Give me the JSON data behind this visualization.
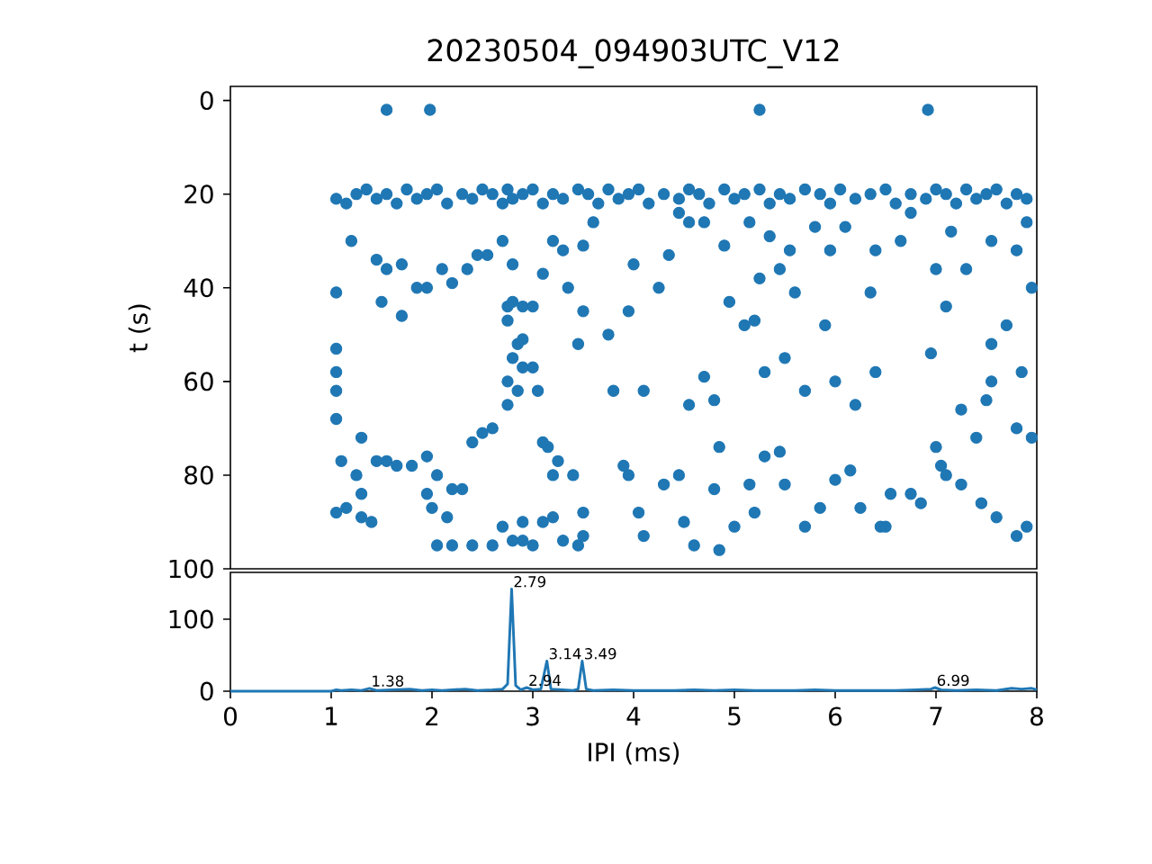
{
  "chart_data": [
    {
      "type": "scatter",
      "title": "20230504_094903UTC_V12",
      "ylabel": "t (s)",
      "color": "#1f77b4",
      "marker": "circle",
      "tick_labels": "y",
      "xlim": [
        0,
        8
      ],
      "ylim": [
        100,
        -3
      ],
      "yticks": [
        0,
        20,
        40,
        60,
        80,
        100
      ],
      "x": [
        1.55,
        1.98,
        5.25,
        6.92,
        1.05,
        1.15,
        1.25,
        1.35,
        1.45,
        1.55,
        1.65,
        1.75,
        1.85,
        1.95,
        2.05,
        2.15,
        2.3,
        2.4,
        2.5,
        2.6,
        2.7,
        2.75,
        2.8,
        2.9,
        3.0,
        3.1,
        3.2,
        3.3,
        3.45,
        3.55,
        3.65,
        3.75,
        3.85,
        3.95,
        4.05,
        4.15,
        4.3,
        4.45,
        4.55,
        4.65,
        4.75,
        4.9,
        5.0,
        5.1,
        5.25,
        5.35,
        5.45,
        5.55,
        5.7,
        5.85,
        5.95,
        6.05,
        6.2,
        6.35,
        6.5,
        6.6,
        6.75,
        6.9,
        7.0,
        7.1,
        7.2,
        7.3,
        7.4,
        7.5,
        7.6,
        7.7,
        7.8,
        7.9,
        1.05,
        1.05,
        1.05,
        1.05,
        1.05,
        1.1,
        1.05,
        1.15,
        1.3,
        1.4,
        1.25,
        1.3,
        1.3,
        1.45,
        1.55,
        1.65,
        1.8,
        1.95,
        2.0,
        2.05,
        1.95,
        2.15,
        2.2,
        2.3,
        2.4,
        2.5,
        2.6,
        2.75,
        2.75,
        2.8,
        2.85,
        2.75,
        2.75,
        2.8,
        2.9,
        3.0,
        2.9,
        2.9,
        2.85,
        3.0,
        3.05,
        3.1,
        3.15,
        3.2,
        3.25,
        3.3,
        3.45,
        3.5,
        3.4,
        3.5,
        2.6,
        2.4,
        2.2,
        2.05,
        2.8,
        2.9,
        3.0,
        2.7,
        2.9,
        3.2,
        3.1,
        1.55,
        1.7,
        1.45,
        1.2,
        1.5,
        1.7,
        1.95,
        1.85,
        2.1,
        2.2,
        2.35,
        2.45,
        2.55,
        2.7,
        2.8,
        3.1,
        3.2,
        3.3,
        3.5,
        3.6,
        3.35,
        3.5,
        3.75,
        3.8,
        3.45,
        3.9,
        3.95,
        4.05,
        4.1,
        4.3,
        4.45,
        4.5,
        4.6,
        4.8,
        4.85,
        4.85,
        5.0,
        5.15,
        5.2,
        5.3,
        5.45,
        5.5,
        5.7,
        5.85,
        6.0,
        6.15,
        6.25,
        6.45,
        6.5,
        6.55,
        6.75,
        6.85,
        7.0,
        7.1,
        7.25,
        7.45,
        7.6,
        7.8,
        7.9,
        7.95,
        7.8,
        7.55,
        7.5,
        7.4,
        7.25,
        7.05,
        6.95,
        7.1,
        7.0,
        7.15,
        7.3,
        7.55,
        7.8,
        7.95,
        7.9,
        7.7,
        7.55,
        7.85,
        6.4,
        6.2,
        6.0,
        5.9,
        5.7,
        5.5,
        5.3,
        5.1,
        4.95,
        4.9,
        4.7,
        4.55,
        4.45,
        4.35,
        4.25,
        4.0,
        3.95,
        4.1,
        4.55,
        4.7,
        4.8,
        5.6,
        5.45,
        5.25,
        5.2,
        5.8,
        6.1,
        6.4,
        6.65,
        6.75,
        6.35,
        5.95,
        5.55,
        5.35,
        5.15
      ],
      "values": [
        2,
        2,
        2,
        2,
        21,
        22,
        20,
        19,
        21,
        20,
        22,
        19,
        21,
        20,
        19,
        22,
        20,
        21,
        19,
        20,
        22,
        19,
        21,
        20,
        19,
        22,
        20,
        21,
        19,
        20,
        22,
        19,
        21,
        20,
        19,
        22,
        20,
        21,
        19,
        20,
        22,
        19,
        21,
        20,
        19,
        22,
        20,
        21,
        19,
        20,
        22,
        19,
        21,
        20,
        19,
        22,
        20,
        21,
        19,
        20,
        22,
        19,
        21,
        20,
        19,
        22,
        20,
        21,
        41,
        53,
        58,
        62,
        68,
        77,
        88,
        87,
        89,
        90,
        80,
        84,
        72,
        77,
        77,
        78,
        78,
        76,
        87,
        80,
        84,
        89,
        83,
        83,
        73,
        71,
        70,
        65,
        60,
        55,
        52,
        47,
        44,
        43,
        44,
        44,
        51,
        57,
        62,
        57,
        62,
        73,
        74,
        80,
        77,
        94,
        95,
        88,
        80,
        93,
        95,
        95,
        95,
        95,
        94,
        94,
        95,
        91,
        90,
        89,
        90,
        36,
        35,
        34,
        30,
        43,
        46,
        40,
        40,
        36,
        39,
        36,
        33,
        33,
        30,
        35,
        37,
        30,
        32,
        31,
        26,
        40,
        45,
        50,
        62,
        52,
        78,
        80,
        88,
        93,
        82,
        80,
        90,
        95,
        83,
        96,
        74,
        91,
        82,
        88,
        76,
        75,
        82,
        91,
        87,
        81,
        79,
        87,
        91,
        91,
        84,
        84,
        86,
        74,
        80,
        82,
        86,
        89,
        93,
        91,
        72,
        70,
        60,
        64,
        72,
        66,
        78,
        54,
        44,
        36,
        28,
        36,
        30,
        32,
        40,
        26,
        48,
        52,
        58,
        58,
        65,
        60,
        48,
        62,
        55,
        58,
        48,
        43,
        31,
        26,
        26,
        24,
        33,
        40,
        35,
        45,
        62,
        65,
        59,
        64,
        41,
        36,
        38,
        47,
        27,
        27,
        32,
        30,
        24,
        41,
        32,
        32,
        29,
        26
      ]
    },
    {
      "type": "line",
      "xlabel": "IPI (ms)",
      "color": "#1f77b4",
      "xlim": [
        0,
        8
      ],
      "xticks": [
        0,
        1,
        2,
        3,
        4,
        5,
        6,
        7,
        8
      ],
      "ylim": [
        0,
        165
      ],
      "yticks": [
        0,
        100
      ],
      "x": [
        0,
        1.0,
        1.05,
        1.1,
        1.2,
        1.3,
        1.38,
        1.45,
        1.6,
        1.78,
        1.9,
        2.0,
        2.1,
        2.2,
        2.33,
        2.45,
        2.6,
        2.7,
        2.75,
        2.79,
        2.83,
        2.88,
        2.94,
        3.0,
        3.08,
        3.14,
        3.18,
        3.3,
        3.4,
        3.45,
        3.49,
        3.53,
        3.6,
        3.8,
        4.0,
        4.2,
        4.4,
        4.6,
        4.8,
        5.0,
        5.2,
        5.4,
        5.6,
        5.8,
        6.0,
        6.2,
        6.4,
        6.6,
        6.8,
        6.95,
        6.99,
        7.05,
        7.2,
        7.4,
        7.6,
        7.75,
        7.85,
        7.95,
        8.0
      ],
      "values": [
        0,
        0,
        2,
        1,
        2,
        1,
        4,
        1,
        2,
        3,
        1,
        2,
        1,
        2,
        3,
        1,
        2,
        3,
        10,
        142,
        8,
        2,
        5,
        2,
        3,
        42,
        3,
        2,
        1,
        3,
        42,
        3,
        1,
        2,
        1,
        1,
        1,
        2,
        1,
        2,
        1,
        1,
        1,
        2,
        1,
        1,
        1,
        1,
        2,
        3,
        5,
        2,
        1,
        2,
        1,
        4,
        3,
        4,
        2
      ],
      "annotations": [
        {
          "text": "1.38",
          "x": 1.38,
          "y": 4
        },
        {
          "text": "2.79",
          "x": 2.79,
          "y": 142
        },
        {
          "text": "2.94",
          "x": 2.94,
          "y": 5
        },
        {
          "text": "3.14",
          "x": 3.14,
          "y": 42
        },
        {
          "text": "3.49",
          "x": 3.49,
          "y": 42
        },
        {
          "text": "6.99",
          "x": 6.99,
          "y": 5
        }
      ]
    }
  ]
}
